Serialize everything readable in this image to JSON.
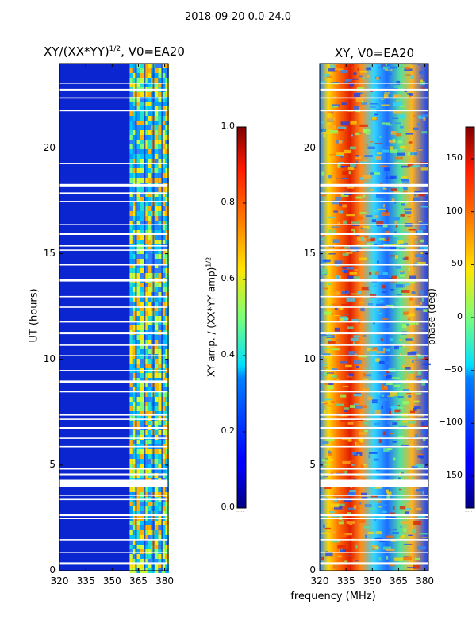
{
  "chart_data": [
    {
      "type": "heatmap",
      "title_prefix": "XY/(XX*YY)",
      "title_exponent": "1/2",
      "title_suffix": ", V0=EA20",
      "xlabel": "",
      "ylabel": "UT (hours)",
      "xlim": [
        320,
        382
      ],
      "ylim": [
        0,
        24
      ],
      "xticks": [
        "320",
        "335",
        "350",
        "365",
        "380"
      ],
      "yticks": [
        "0",
        "5",
        "10",
        "15",
        "20"
      ],
      "colorbar": {
        "label_prefix": "XY amp. / (XX*YY amp)",
        "label_exponent": "1/2",
        "range": [
          0.0,
          1.0
        ],
        "ticks": [
          "0.0",
          "0.2",
          "0.4",
          "0.6",
          "0.8",
          "1.0"
        ],
        "colormap": "jet"
      },
      "description_values": {
        "low_band_mhz": [
          320,
          360
        ],
        "low_band_level": 0.1,
        "high_band_mhz": [
          360,
          382
        ],
        "high_band_level": 0.45
      }
    },
    {
      "type": "heatmap",
      "title": "XY, V0=EA20",
      "xlabel": "frequency (MHz)",
      "ylabel": "",
      "xlim": [
        320,
        382
      ],
      "ylim": [
        0,
        24
      ],
      "xticks": [
        "320",
        "335",
        "350",
        "365",
        "380"
      ],
      "yticks": [
        "0",
        "5",
        "10",
        "15",
        "20"
      ],
      "colorbar": {
        "label": "phase (deg)",
        "range": [
          -180,
          180
        ],
        "ticks": [
          "−150",
          "−100",
          "−50",
          "0",
          "50",
          "100",
          "150"
        ],
        "colormap": "jet"
      }
    }
  ],
  "suptitle": "2018-09-20 0.0-24.0",
  "colorbar_offset_text": "....."
}
